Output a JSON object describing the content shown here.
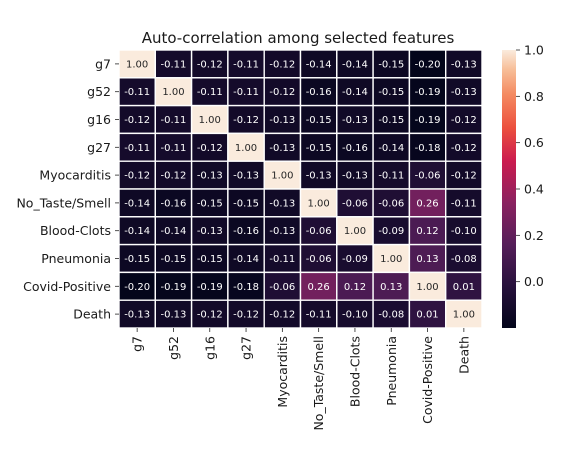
{
  "chart_data": {
    "type": "heatmap",
    "title": "Auto-correlation among selected features",
    "xlabel": "",
    "ylabel": "",
    "rows": [
      "g7",
      "g52",
      "g16",
      "g27",
      "Myocarditis",
      "No_Taste/Smell",
      "Blood-Clots",
      "Pneumonia",
      "Covid-Positive",
      "Death"
    ],
    "columns": [
      "g7",
      "g52",
      "g16",
      "g27",
      "Myocarditis",
      "No_Taste/Smell",
      "Blood-Clots",
      "Pneumonia",
      "Covid-Positive",
      "Death"
    ],
    "values": [
      [
        1.0,
        -0.11,
        -0.12,
        -0.11,
        -0.12,
        -0.14,
        -0.14,
        -0.15,
        -0.2,
        -0.13
      ],
      [
        -0.11,
        1.0,
        -0.11,
        -0.11,
        -0.12,
        -0.16,
        -0.14,
        -0.15,
        -0.19,
        -0.13
      ],
      [
        -0.12,
        -0.11,
        1.0,
        -0.12,
        -0.13,
        -0.15,
        -0.13,
        -0.15,
        -0.19,
        -0.12
      ],
      [
        -0.11,
        -0.11,
        -0.12,
        1.0,
        -0.13,
        -0.15,
        -0.16,
        -0.14,
        -0.18,
        -0.12
      ],
      [
        -0.12,
        -0.12,
        -0.13,
        -0.13,
        1.0,
        -0.13,
        -0.13,
        -0.11,
        -0.06,
        -0.12
      ],
      [
        -0.14,
        -0.16,
        -0.15,
        -0.15,
        -0.13,
        1.0,
        -0.06,
        -0.06,
        0.26,
        -0.11
      ],
      [
        -0.14,
        -0.14,
        -0.13,
        -0.16,
        -0.13,
        -0.06,
        1.0,
        -0.09,
        0.12,
        -0.1
      ],
      [
        -0.15,
        -0.15,
        -0.15,
        -0.14,
        -0.11,
        -0.06,
        -0.09,
        1.0,
        0.13,
        -0.08
      ],
      [
        -0.2,
        -0.19,
        -0.19,
        -0.18,
        -0.06,
        0.26,
        0.12,
        0.13,
        1.0,
        0.01
      ],
      [
        -0.13,
        -0.13,
        -0.12,
        -0.12,
        -0.12,
        -0.11,
        -0.1,
        -0.08,
        0.01,
        1.0
      ]
    ],
    "value_format": "0.00",
    "colorbar": {
      "range": [
        -0.2,
        1.0
      ],
      "ticks": [
        "0.0",
        "0.2",
        "0.4",
        "0.6",
        "0.8",
        "1.0"
      ],
      "colormap": "rocket"
    },
    "grid_line_color": "#ffffff",
    "text_color_dark_cells": "#ffffff",
    "text_color_light_cells": "#262626"
  }
}
